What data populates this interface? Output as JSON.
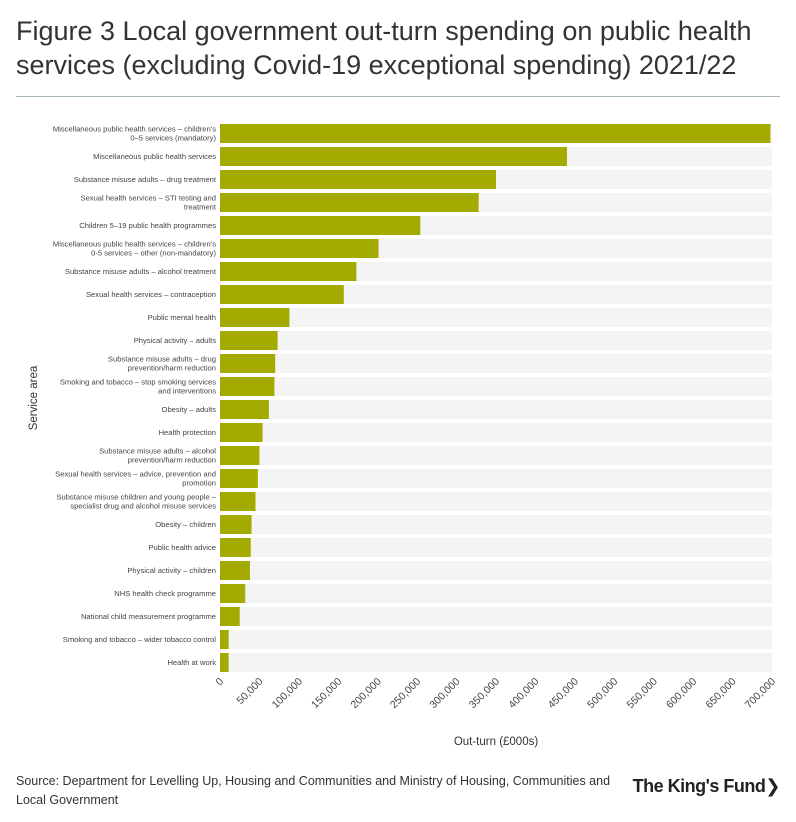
{
  "title": "Figure 3 Local government out-turn spending on public health services (excluding Covid-19 exceptional spending) 2021/22",
  "source": "Source: Department for Levelling Up, Housing and Communities and Ministry of Housing, Communities and Local Government",
  "logo": {
    "text": "The King's Fund",
    "mark": "❯"
  },
  "colors": {
    "bar": "#a3aa00",
    "band": "#f4f4f4"
  },
  "chart_data": {
    "type": "bar",
    "orientation": "horizontal",
    "xlabel": "Out-turn (£000s)",
    "ylabel": "Service area",
    "xlim": [
      0,
      700000
    ],
    "xticks": [
      "0",
      "50,000",
      "100,000",
      "150,000",
      "200,000",
      "250,000",
      "300,000",
      "350,000",
      "400,000",
      "450,000",
      "500,000",
      "550,000",
      "600,000",
      "650,000",
      "700,000"
    ],
    "categories": [
      [
        "Miscellaneous public health services – children's",
        "0–5 services (mandatory)"
      ],
      [
        "Miscellaneous public health services"
      ],
      [
        "Substance misuse adults – drug treatment"
      ],
      [
        "Sexual health services – STI testing and",
        "treatment"
      ],
      [
        "Children 5–19 public health programmes"
      ],
      [
        "Miscellaneous public health services – children's",
        "0-5 services – other (non-mandatory)"
      ],
      [
        "Substance misuse adults – alcohol treatment"
      ],
      [
        "Sexual health services – contraception"
      ],
      [
        "Public mental health"
      ],
      [
        "Physical activity – adults"
      ],
      [
        "Substance misuse adults – drug",
        "prevention/harm reduction"
      ],
      [
        "Smoking and tobacco – stop smoking services",
        "and interventions"
      ],
      [
        "Obesity – adults"
      ],
      [
        "Health protection"
      ],
      [
        "Substance misuse adults – alcohol",
        "prevention/harm reduction"
      ],
      [
        "Sexual health services – advice, prevention and",
        "promotion"
      ],
      [
        "Substance misuse children and young people –",
        "specialist drug and alcohol misuse services"
      ],
      [
        "Obesity – children"
      ],
      [
        "Public health advice"
      ],
      [
        "Physical activity – children"
      ],
      [
        "NHS health check programme"
      ],
      [
        "National child measurement programme"
      ],
      [
        "Smoking and tobacco – wider tobacco control"
      ],
      [
        "Health at work"
      ]
    ],
    "values": [
      698000,
      440000,
      350000,
      328000,
      254000,
      201000,
      173000,
      157000,
      88000,
      73000,
      70000,
      69000,
      62000,
      54000,
      50000,
      48000,
      45000,
      40000,
      39000,
      38000,
      32000,
      25000,
      11000,
      11000
    ]
  }
}
